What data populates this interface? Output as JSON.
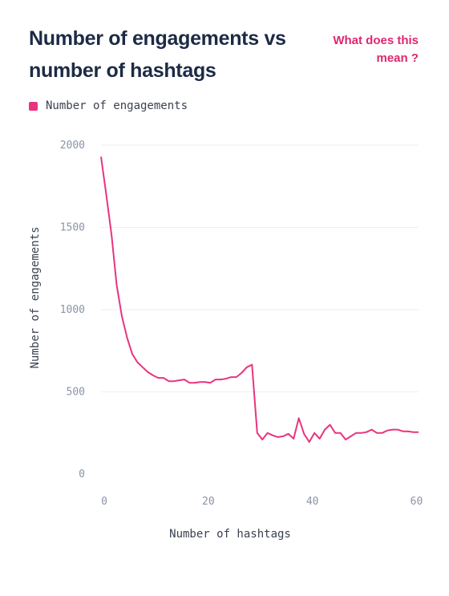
{
  "header": {
    "title": "Number of engagements vs number of hashtags",
    "help_link": "What does this mean ?"
  },
  "chart_data": {
    "type": "line",
    "title": "Number of engagements vs number of hashtags",
    "xlabel": "Number of hashtags",
    "ylabel": "Number of engagements",
    "xlim": [
      0,
      61
    ],
    "ylim": [
      0,
      2000
    ],
    "x_ticks": [
      0,
      20,
      40,
      60
    ],
    "y_ticks": [
      0,
      500,
      1000,
      1500,
      2000
    ],
    "grid": true,
    "legend_position": "top-left",
    "series": [
      {
        "name": "Number of engagements",
        "color": "#e8347d",
        "x": [
          0,
          1,
          2,
          3,
          4,
          5,
          6,
          7,
          8,
          9,
          10,
          11,
          12,
          13,
          14,
          15,
          16,
          17,
          18,
          19,
          20,
          21,
          22,
          23,
          24,
          25,
          26,
          27,
          28,
          29,
          30,
          31,
          32,
          33,
          34,
          35,
          36,
          37,
          38,
          39,
          40,
          41,
          42,
          43,
          44,
          45,
          46,
          47,
          48,
          49,
          50,
          51,
          52,
          53,
          54,
          55,
          56,
          57,
          58,
          59,
          60,
          61
        ],
        "y": [
          1930,
          1700,
          1460,
          1150,
          960,
          830,
          730,
          680,
          650,
          620,
          600,
          585,
          585,
          565,
          565,
          570,
          575,
          555,
          555,
          560,
          560,
          555,
          575,
          575,
          580,
          590,
          590,
          615,
          650,
          665,
          250,
          210,
          250,
          235,
          225,
          230,
          245,
          215,
          340,
          245,
          195,
          250,
          215,
          270,
          300,
          250,
          250,
          210,
          230,
          250,
          250,
          255,
          270,
          250,
          250,
          265,
          270,
          270,
          260,
          260,
          255,
          255
        ]
      }
    ]
  }
}
